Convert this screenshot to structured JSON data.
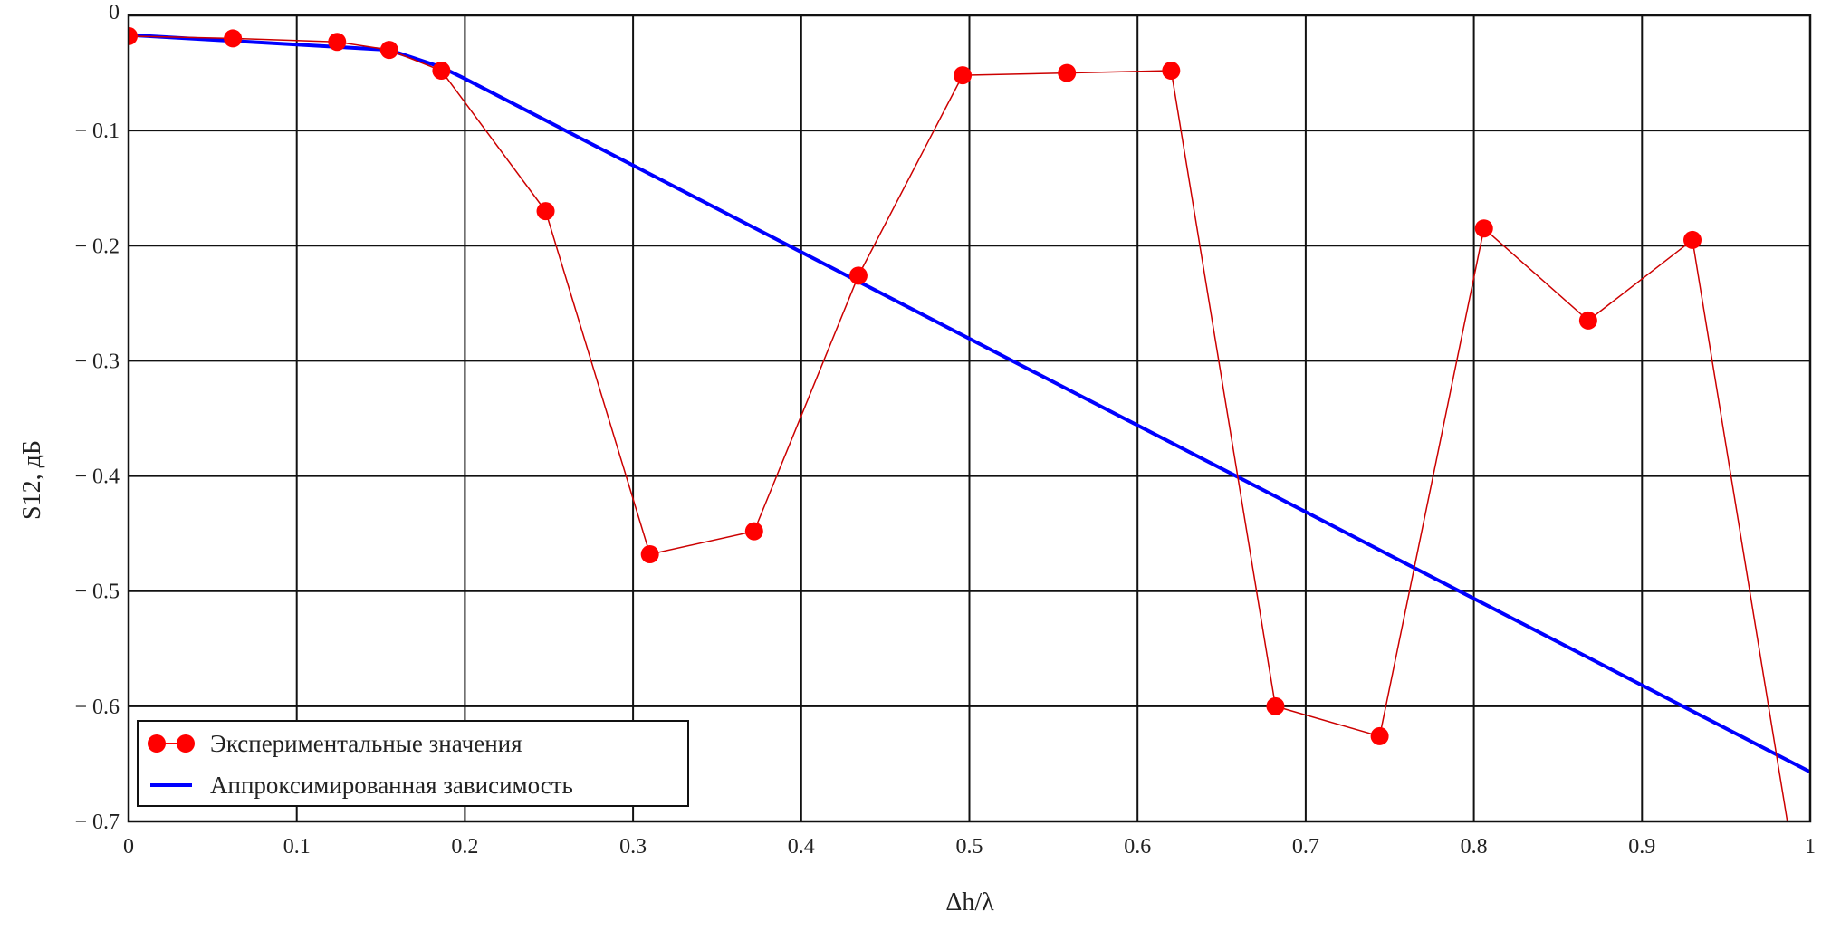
{
  "chart_data": {
    "type": "line",
    "xlabel": "Δh/λ",
    "ylabel": "S12, дБ",
    "xlim": [
      0,
      1
    ],
    "ylim": [
      -0.7,
      0
    ],
    "grid": true,
    "legend_position": "bottom-left",
    "x_ticks": [
      "0",
      "0.1",
      "0.2",
      "0.3",
      "0.4",
      "0.5",
      "0.6",
      "0.7",
      "0.8",
      "0.9",
      "1"
    ],
    "y_ticks": [
      "0",
      "− 0.1",
      "− 0.2",
      "− 0.3",
      "− 0.4",
      "− 0.5",
      "− 0.6",
      "− 0.7"
    ],
    "series": [
      {
        "name": "Экспериментальные значения",
        "color": "#ff0000",
        "marker": "circle",
        "x": [
          0,
          0.062,
          0.124,
          0.155,
          0.186,
          0.248,
          0.31,
          0.372,
          0.434,
          0.496,
          0.558,
          0.62,
          0.682,
          0.744,
          0.806,
          0.868,
          0.93,
          0.992
        ],
        "y": [
          -0.018,
          -0.02,
          -0.023,
          -0.03,
          -0.048,
          -0.17,
          -0.468,
          -0.448,
          -0.226,
          -0.052,
          -0.05,
          -0.048,
          -0.6,
          -0.626,
          -0.185,
          -0.265,
          -0.195,
          -0.75
        ]
      },
      {
        "name": "Аппроксимированная зависимость",
        "color": "#0000ff",
        "marker": "none",
        "x": [
          0,
          0.155,
          0.186,
          0.2,
          1.0
        ],
        "y": [
          -0.017,
          -0.03,
          -0.045,
          -0.055,
          -0.657
        ]
      }
    ]
  }
}
